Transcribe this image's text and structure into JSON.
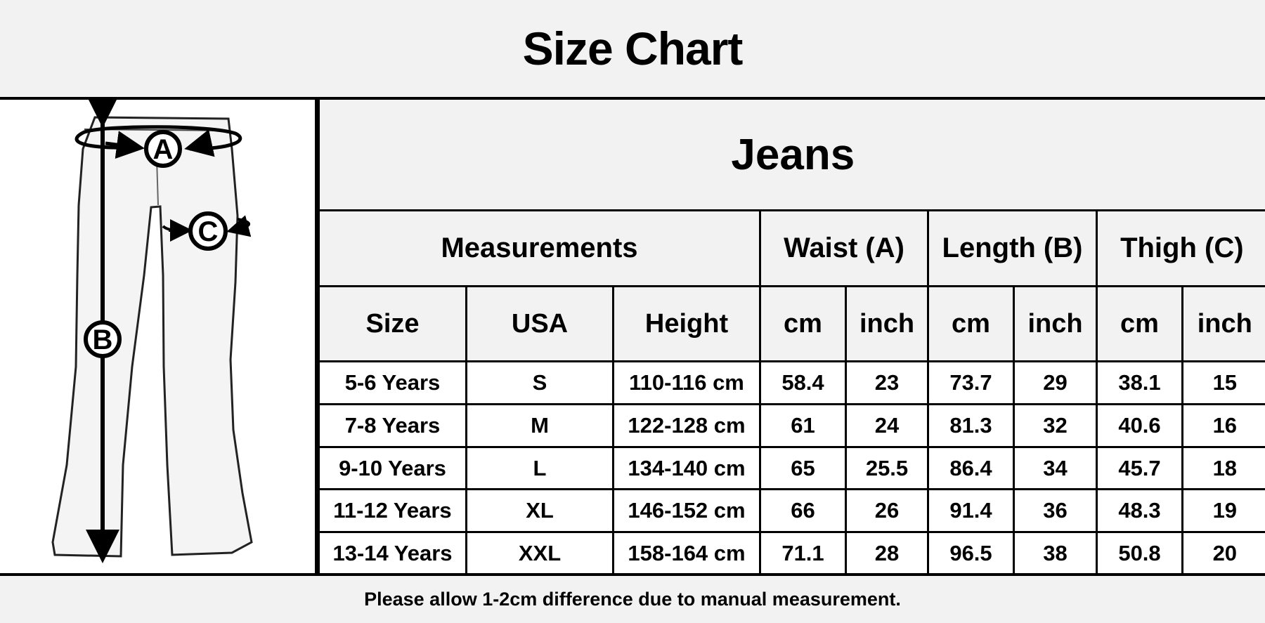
{
  "title": "Size Chart",
  "product": "Jeans",
  "diagram": {
    "labels": {
      "waist": "A",
      "length": "B",
      "thigh": "C"
    }
  },
  "groups": [
    "Measurements",
    "Waist (A)",
    "Length (B)",
    "Thigh (C)"
  ],
  "columns": [
    "Size",
    "USA",
    "Height",
    "cm",
    "inch",
    "cm",
    "inch",
    "cm",
    "inch"
  ],
  "rows": [
    [
      "5-6 Years",
      "S",
      "110-116 cm",
      "58.4",
      "23",
      "73.7",
      "29",
      "38.1",
      "15"
    ],
    [
      "7-8 Years",
      "M",
      "122-128 cm",
      "61",
      "24",
      "81.3",
      "32",
      "40.6",
      "16"
    ],
    [
      "9-10 Years",
      "L",
      "134-140 cm",
      "65",
      "25.5",
      "86.4",
      "34",
      "45.7",
      "18"
    ],
    [
      "11-12 Years",
      "XL",
      "146-152 cm",
      "66",
      "26",
      "91.4",
      "36",
      "48.3",
      "19"
    ],
    [
      "13-14 Years",
      "XXL",
      "158-164 cm",
      "71.1",
      "28",
      "96.5",
      "38",
      "50.8",
      "20"
    ]
  ],
  "footer": "Please allow 1-2cm difference due to manual measurement.",
  "colors": {
    "header_bg": "#f2f2f2",
    "border": "#000000",
    "cell_bg": "#ffffff"
  }
}
